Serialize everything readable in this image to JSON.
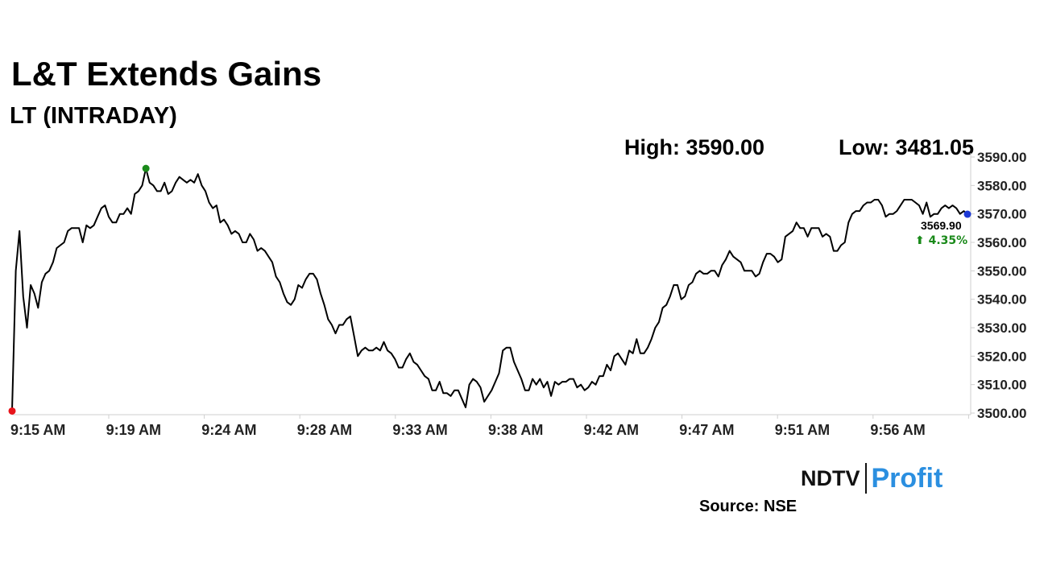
{
  "header": {
    "title": "L&T Extends Gains",
    "subtitle": "LT (INTRADAY)",
    "high_label": "High: 3590.00",
    "low_label": "Low: 3481.05"
  },
  "footer": {
    "source": "Source: NSE",
    "logo_ndtv": "NDTV",
    "logo_profit": "Profit"
  },
  "colors": {
    "line": "#000000",
    "open_marker": "#e8141b",
    "high_marker": "#1a8a1a",
    "last_marker": "#1e3ad6",
    "change_up": "#1a8a1a",
    "logo_profit": "#2b8fe0"
  },
  "chart_data": {
    "type": "line",
    "title": "L&T Extends Gains",
    "subtitle": "LT (INTRADAY)",
    "x_ticks": [
      "9:15 AM",
      "9:19 AM",
      "9:24 AM",
      "9:28 AM",
      "9:33 AM",
      "9:38 AM",
      "9:42 AM",
      "9:47 AM",
      "9:51 AM",
      "9:56 AM"
    ],
    "y_ticks": [
      "3500.00",
      "3510.00",
      "3520.00",
      "3530.00",
      "3540.00",
      "3550.00",
      "3560.00",
      "3570.00",
      "3580.00",
      "3590.00"
    ],
    "ylim": [
      3500,
      3590
    ],
    "grid": false,
    "last_price": "3569.90",
    "change": "4.35%",
    "series": [
      {
        "values": [
          3501,
          3550,
          3564,
          3541,
          3530,
          3545,
          3542,
          3537,
          3546,
          3549,
          3550,
          3553,
          3558,
          3559,
          3560,
          3564,
          3565,
          3565,
          3565,
          3560,
          3566,
          3565,
          3566,
          3569,
          3572,
          3573,
          3569,
          3567,
          3567,
          3570,
          3570,
          3572,
          3570,
          3577,
          3578,
          3580,
          3586,
          3581,
          3580,
          3578,
          3578,
          3581,
          3577,
          3578,
          3581,
          3583,
          3582,
          3581,
          3582,
          3581,
          3584,
          3580,
          3578,
          3574,
          3572,
          3573,
          3567,
          3568,
          3566,
          3563,
          3564,
          3563,
          3560,
          3560,
          3563,
          3561,
          3557,
          3558,
          3557,
          3555,
          3553,
          3548,
          3546,
          3542,
          3539,
          3538,
          3540,
          3545,
          3544,
          3547,
          3549,
          3549,
          3547,
          3542,
          3538,
          3533,
          3531,
          3528,
          3531,
          3531,
          3533,
          3534,
          3527,
          3520,
          3522,
          3523,
          3522,
          3522,
          3523,
          3522,
          3525,
          3522,
          3521,
          3519,
          3516,
          3516,
          3519,
          3521,
          3518,
          3517,
          3515,
          3513,
          3512,
          3508,
          3508,
          3511,
          3507,
          3507,
          3506,
          3508,
          3508,
          3505,
          3502,
          3510,
          3512,
          3511,
          3509,
          3504,
          3506,
          3508,
          3511,
          3514,
          3522,
          3523,
          3523,
          3518,
          3515,
          3512,
          3508,
          3508,
          3512,
          3510,
          3512,
          3509,
          3511,
          3506,
          3511,
          3510,
          3511,
          3511,
          3512,
          3512,
          3509,
          3510,
          3508,
          3509,
          3511,
          3510,
          3513,
          3513,
          3517,
          3515,
          3520,
          3521,
          3519,
          3517,
          3522,
          3521,
          3526,
          3521,
          3521,
          3523,
          3526,
          3530,
          3532,
          3537,
          3538,
          3541,
          3545,
          3545,
          3540,
          3541,
          3545,
          3546,
          3549,
          3550,
          3549,
          3549,
          3550,
          3550,
          3548,
          3552,
          3554,
          3557,
          3555,
          3554,
          3553,
          3550,
          3550,
          3550,
          3548,
          3549,
          3553,
          3556,
          3556,
          3555,
          3553,
          3554,
          3562,
          3563,
          3564,
          3567,
          3565,
          3565,
          3562,
          3565,
          3565,
          3565,
          3562,
          3563,
          3562,
          3557,
          3557,
          3559,
          3560,
          3567,
          3570,
          3571,
          3571,
          3573,
          3574,
          3574,
          3575,
          3575,
          3573,
          3569,
          3570,
          3570,
          3571,
          3573,
          3575,
          3575,
          3575,
          3574,
          3573,
          3570,
          3574,
          3569,
          3570,
          3570,
          3572,
          3573,
          3572,
          3573,
          3572,
          3570,
          3571,
          3569.9
        ]
      }
    ]
  }
}
